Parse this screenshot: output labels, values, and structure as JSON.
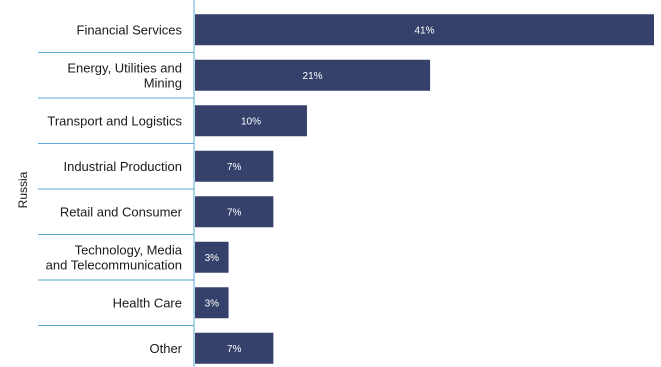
{
  "chart_data": {
    "type": "bar",
    "orientation": "horizontal",
    "group_label": "Russia",
    "categories": [
      [
        "Financial Services"
      ],
      [
        "Energy, Utilities and",
        "Mining"
      ],
      [
        "Transport and Logistics"
      ],
      [
        "Industrial Production"
      ],
      [
        "Retail and Consumer"
      ],
      [
        "Technology, Media",
        "and Telecommunication"
      ],
      [
        "Health Care"
      ],
      [
        "Other"
      ]
    ],
    "values": [
      41,
      21,
      10,
      7,
      7,
      3,
      3,
      7
    ],
    "value_labels": [
      "41%",
      "21%",
      "10%",
      "7%",
      "7%",
      "3%",
      "3%",
      "7%"
    ],
    "xlim": [
      0,
      41
    ],
    "bar_color": "#35416b",
    "axis_color": "#5aa9d6",
    "grid": false
  }
}
